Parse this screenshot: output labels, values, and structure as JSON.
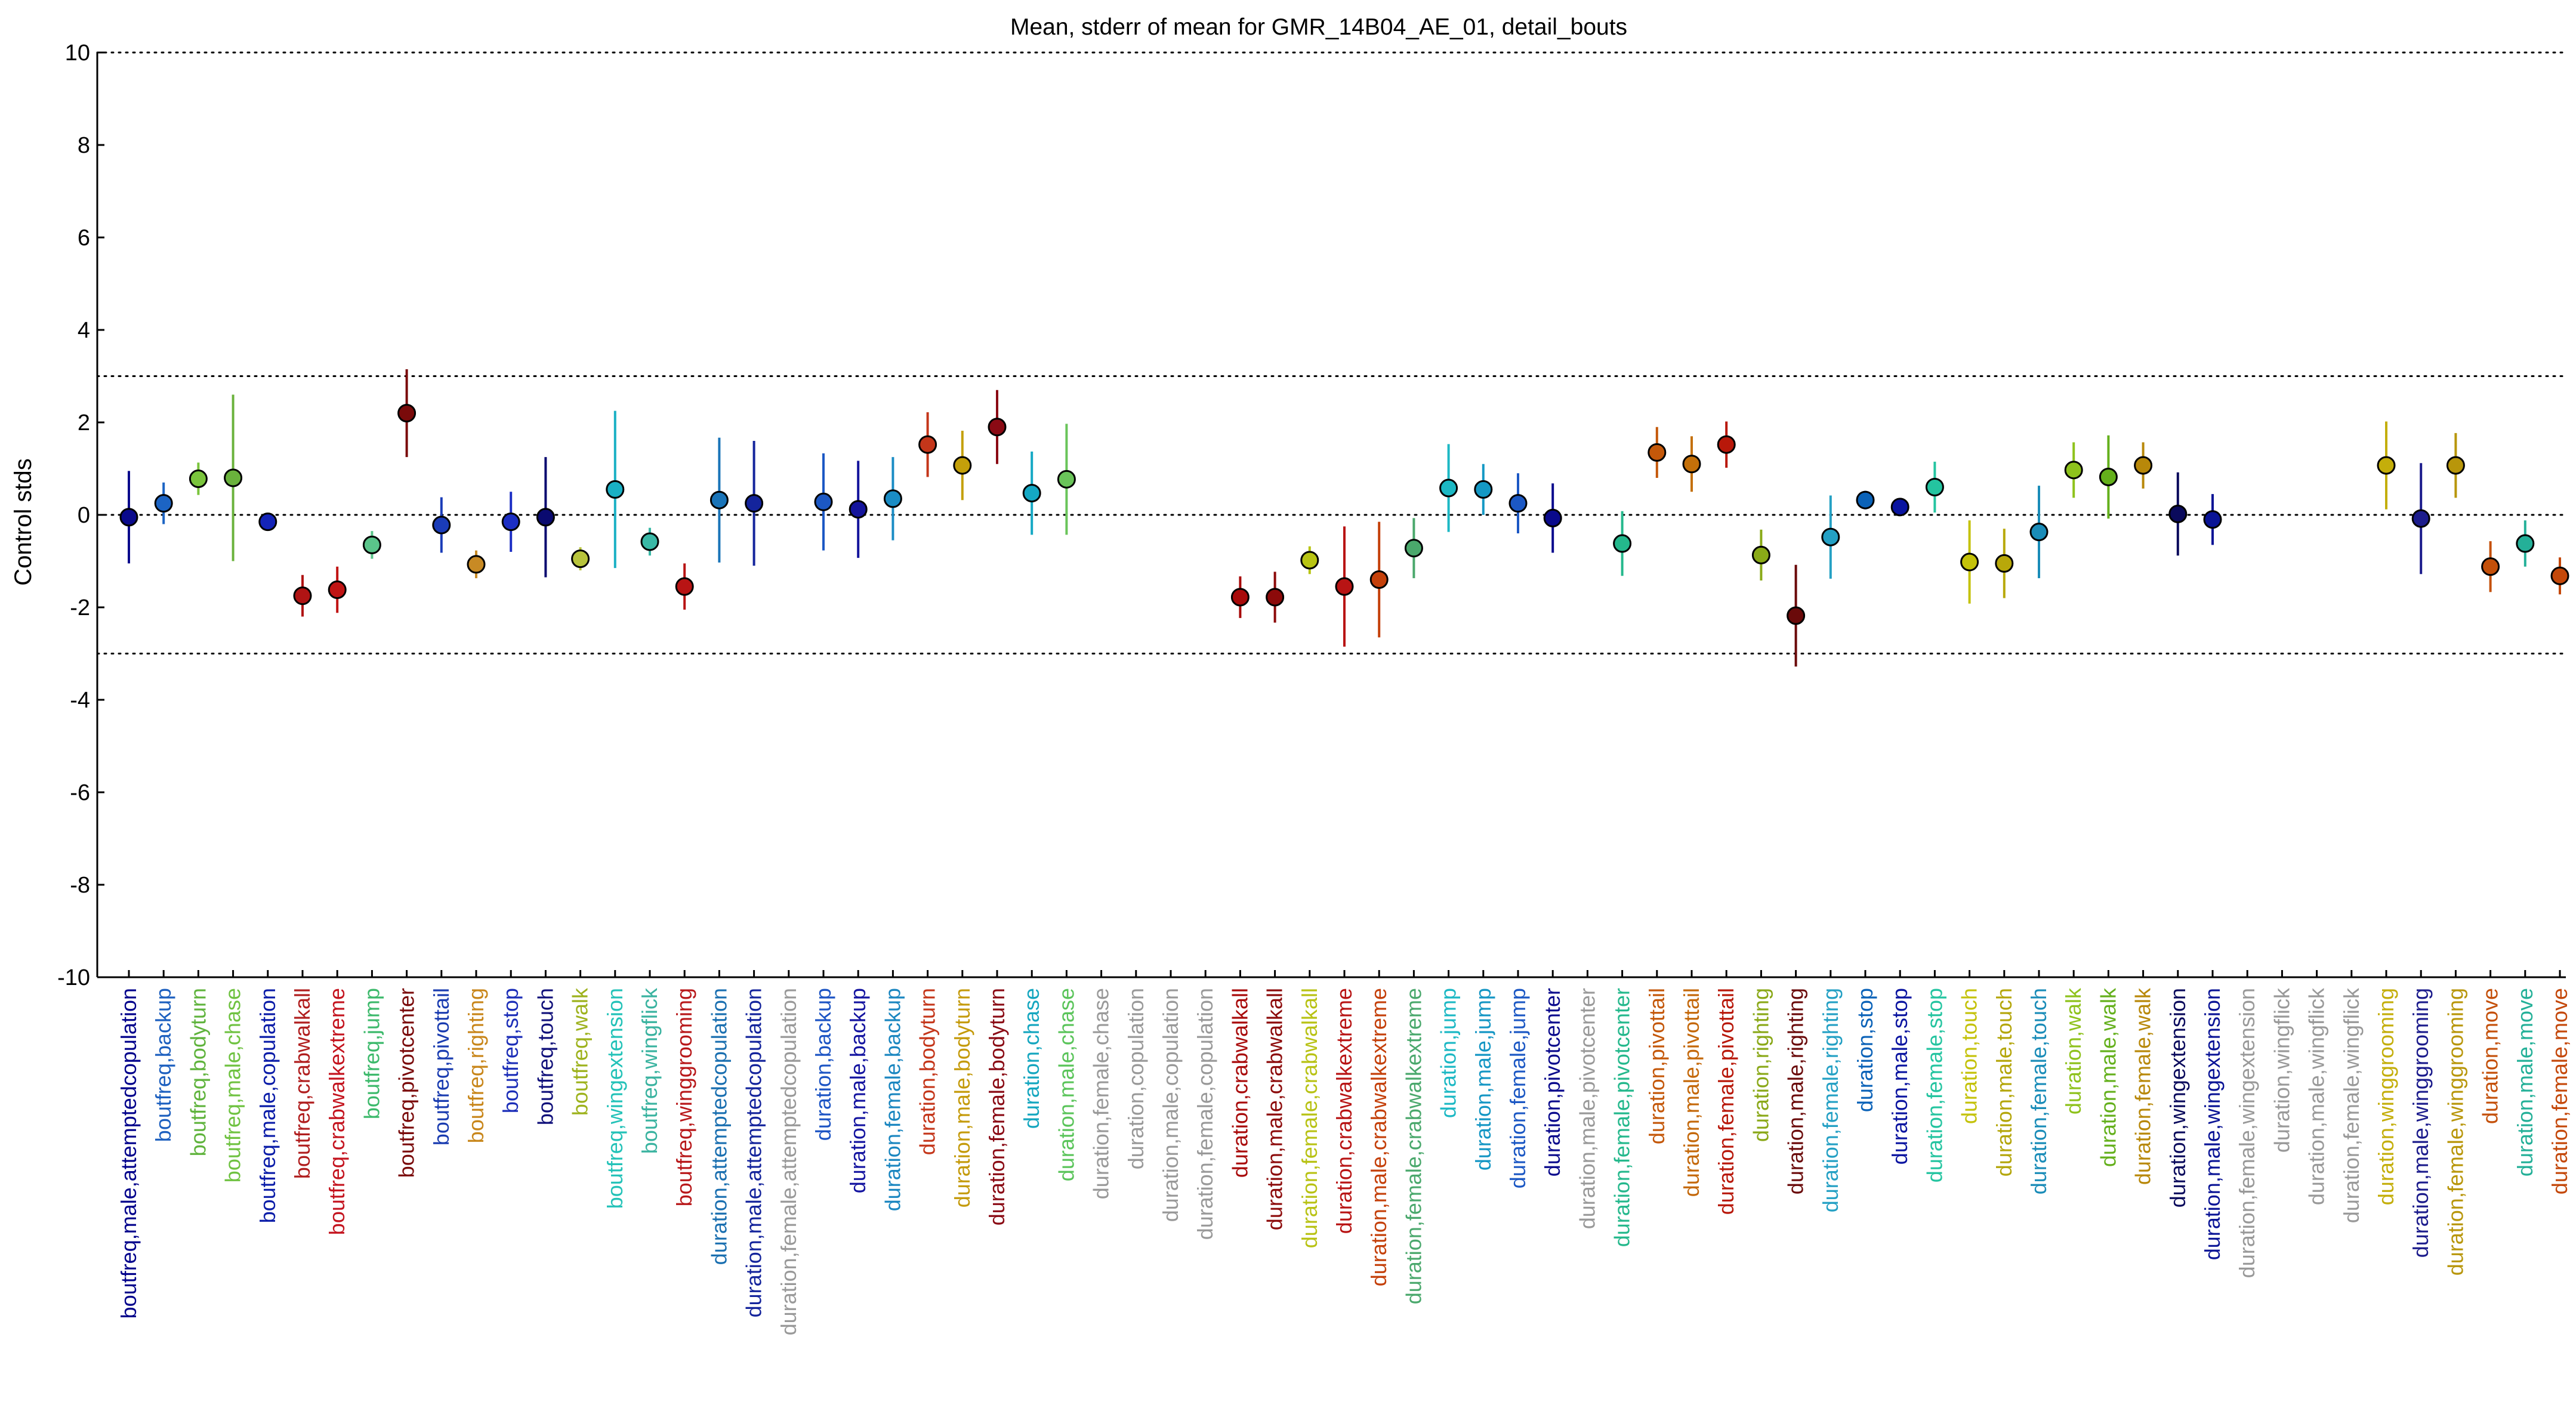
{
  "chart_data": {
    "type": "scatter",
    "title": "Mean, stderr of mean for GMR_14B04_AE_01, detail_bouts",
    "ylabel": "Control stds",
    "xlabel": "",
    "ylim": [
      -10,
      10
    ],
    "yticks": [
      -10,
      -8,
      -6,
      -4,
      -2,
      0,
      2,
      4,
      6,
      8,
      10
    ],
    "reference_lines": [
      -3,
      0,
      3,
      10
    ],
    "categories": [
      "boutfreq,male,attemptedcopulation",
      "boutfreq,backup",
      "boutfreq,bodyturn",
      "boutfreq,male,chase",
      "boutfreq,male,copulation",
      "boutfreq,crabwalkall",
      "boutfreq,crabwalkextreme",
      "boutfreq,jump",
      "boutfreq,pivotcenter",
      "boutfreq,pivottail",
      "boutfreq,righting",
      "boutfreq,stop",
      "boutfreq,touch",
      "boutfreq,walk",
      "boutfreq,wingextension",
      "boutfreq,wingflick",
      "boutfreq,winggrooming",
      "duration,attemptedcopulation",
      "duration,male,attemptedcopulation",
      "duration,female,attemptedcopulation",
      "duration,backup",
      "duration,male,backup",
      "duration,female,backup",
      "duration,bodyturn",
      "duration,male,bodyturn",
      "duration,female,bodyturn",
      "duration,chase",
      "duration,male,chase",
      "duration,female,chase",
      "duration,copulation",
      "duration,male,copulation",
      "duration,female,copulation",
      "duration,crabwalkall",
      "duration,male,crabwalkall",
      "duration,female,crabwalkall",
      "duration,crabwalkextreme",
      "duration,male,crabwalkextreme",
      "duration,female,crabwalkextreme",
      "duration,jump",
      "duration,male,jump",
      "duration,female,jump",
      "duration,pivotcenter",
      "duration,male,pivotcenter",
      "duration,female,pivotcenter",
      "duration,pivottail",
      "duration,male,pivottail",
      "duration,female,pivottail",
      "duration,righting",
      "duration,male,righting",
      "duration,female,righting",
      "duration,stop",
      "duration,male,stop",
      "duration,female,stop",
      "duration,touch",
      "duration,male,touch",
      "duration,female,touch",
      "duration,walk",
      "duration,male,walk",
      "duration,female,walk",
      "duration,wingextension",
      "duration,male,wingextension",
      "duration,female,wingextension",
      "duration,wingflick",
      "duration,male,wingflick",
      "duration,female,wingflick",
      "duration,winggrooming",
      "duration,male,winggrooming",
      "duration,female,winggrooming",
      "duration,move",
      "duration,male,move",
      "duration,female,move"
    ],
    "label_colors": [
      "#00008b",
      "#1c5fbf",
      "#5fb33c",
      "#6fc241",
      "#0a1ca8",
      "#b01e1e",
      "#c4141f",
      "#3cb96b",
      "#7a0a0a",
      "#1a3cb0",
      "#c8861a",
      "#1c2eb8",
      "#10107a",
      "#9db21c",
      "#23c2b8",
      "#3ab3a0",
      "#b8181a",
      "#1a6fb0",
      "#14249c",
      "#999999",
      "#1c54c4",
      "#1414a0",
      "#1a86c0",
      "#c4361a",
      "#c49a0a",
      "#8a0a14",
      "#14a6bf",
      "#5ac45a",
      "#999999",
      "#999999",
      "#999999",
      "#999999",
      "#a80a0a",
      "#8c0a0a",
      "#b8c214",
      "#b81414",
      "#c4400a",
      "#4aa86c",
      "#1cb8c4",
      "#1496c4",
      "#1c58c4",
      "#0a0a8c",
      "#999999",
      "#24b88c",
      "#c4580a",
      "#c4680a",
      "#b8180a",
      "#8aa818",
      "#6a0a0a",
      "#24a0c4",
      "#0a62b8",
      "#0a14a0",
      "#24c4a0",
      "#c4c20a",
      "#b4a60a",
      "#1a8cb8",
      "#8ec21c",
      "#64b01c",
      "#b8880a",
      "#0a0a5c",
      "#0a1496",
      "#999999",
      "#999999",
      "#999999",
      "#999999",
      "#c4ae0a",
      "#1c1c8c",
      "#b8960a",
      "#c4500a",
      "#24b098",
      "#c4480a"
    ],
    "point_colors": [
      "#0a0a8c",
      "#1c64c4",
      "#7ac43c",
      "#6ab23c",
      "#1424b8",
      "#b01414",
      "#c01414",
      "#5ac48a",
      "#7a0a0a",
      "#1a3cb8",
      "#c88a24",
      "#1c2ec4",
      "#0a0a70",
      "#b8c43c",
      "#1ab0c4",
      "#3ab8a6",
      "#b81414",
      "#1a74b8",
      "#14249c",
      null,
      "#1c58c4",
      "#14149c",
      "#1a8cc4",
      "#c4361a",
      "#c4a00a",
      "#8a0a14",
      "#14a8c4",
      "#6ac45a",
      null,
      null,
      null,
      null,
      "#a80a0a",
      "#8c0a0a",
      "#b8c414",
      "#b81414",
      "#c4400a",
      "#4aa86c",
      "#1cb8c4",
      "#1498c4",
      "#1c58c4",
      "#0a0a8c",
      null,
      "#24b88c",
      "#c4580a",
      "#c4700a",
      "#b8180a",
      "#8aaa18",
      "#6a0a0a",
      "#24a0c4",
      "#0a62b8",
      "#0a14a0",
      "#24c4a0",
      "#c4c20a",
      "#b8a80a",
      "#1a8cb8",
      "#8ec21c",
      "#64b01c",
      "#b8880a",
      "#0a0a5c",
      "#0a1496",
      null,
      null,
      null,
      null,
      "#c4ae0a",
      "#1c1c8c",
      "#b8960a",
      "#c4500a",
      "#24b098",
      "#c4480a"
    ],
    "mean": [
      -0.05,
      0.25,
      0.78,
      0.8,
      -0.15,
      -1.75,
      -1.62,
      -0.65,
      2.2,
      -0.22,
      -1.07,
      -0.15,
      -0.05,
      -0.95,
      0.55,
      -0.58,
      -1.55,
      0.32,
      0.25,
      null,
      0.28,
      0.12,
      0.35,
      1.52,
      1.07,
      1.9,
      0.47,
      0.77,
      null,
      null,
      null,
      null,
      -1.78,
      -1.78,
      -0.98,
      -1.55,
      -1.4,
      -0.72,
      0.58,
      0.55,
      0.25,
      -0.07,
      null,
      -0.62,
      1.35,
      1.1,
      1.52,
      -0.87,
      -2.18,
      -0.48,
      0.32,
      0.17,
      0.6,
      -1.02,
      -1.05,
      -0.37,
      0.97,
      0.82,
      1.07,
      0.02,
      -0.1,
      null,
      null,
      null,
      null,
      1.07,
      -0.08,
      1.07,
      -1.12,
      -0.62,
      -1.32
    ],
    "stderr": [
      1.0,
      0.45,
      0.35,
      1.8,
      0.1,
      0.45,
      0.5,
      0.3,
      0.95,
      0.6,
      0.3,
      0.65,
      1.3,
      0.25,
      1.7,
      0.3,
      0.5,
      1.35,
      1.35,
      null,
      1.05,
      1.05,
      0.9,
      0.7,
      0.75,
      0.8,
      0.9,
      1.2,
      null,
      null,
      null,
      null,
      0.45,
      0.55,
      0.3,
      1.3,
      1.25,
      0.65,
      0.95,
      0.55,
      0.65,
      0.75,
      null,
      0.7,
      0.55,
      0.6,
      0.5,
      0.55,
      1.1,
      0.9,
      0.2,
      0.1,
      0.55,
      0.9,
      0.75,
      1.0,
      0.6,
      0.9,
      0.5,
      0.9,
      0.55,
      null,
      null,
      null,
      null,
      0.95,
      1.2,
      0.7,
      0.55,
      0.5,
      0.4
    ],
    "hidden_points_note": "",
    "grid": false,
    "legend": "none"
  }
}
